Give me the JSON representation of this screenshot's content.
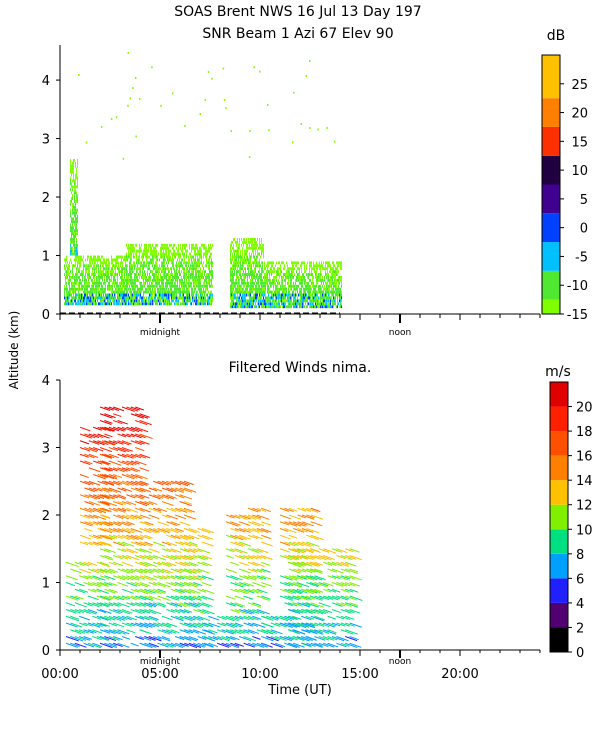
{
  "header": {
    "title_line1": "SOAS Brent NWS  16 Jul 13 Day 197",
    "title_line2": "SNR Beam 1 Azi  67 Elev 90"
  },
  "y_axis_label": "Altitude (km)",
  "chart_data": [
    {
      "type": "heatmap",
      "panel": "snr",
      "title": "",
      "ylim": [
        0,
        4.6
      ],
      "xlim_hours": [
        0,
        24
      ],
      "y_ticks": [
        "0",
        "1",
        "2",
        "3",
        "4"
      ],
      "x_markers": [
        {
          "label": "midnight",
          "hour": 5
        },
        {
          "label": "noon",
          "hour": 17
        }
      ],
      "colorbar": {
        "unit": "dB",
        "ticks": [
          "25",
          "20",
          "15",
          "10",
          "5",
          "0",
          "-5",
          "-10",
          "-15"
        ],
        "bands": [
          {
            "from": -15,
            "to": -12.5,
            "color": "#80ff00"
          },
          {
            "from": -12.5,
            "to": -7.5,
            "color": "#50e830"
          },
          {
            "from": -7.5,
            "to": -2.5,
            "color": "#00c0ff"
          },
          {
            "from": -2.5,
            "to": 2.5,
            "color": "#0040ff"
          },
          {
            "from": 2.5,
            "to": 7.5,
            "color": "#400090"
          },
          {
            "from": 7.5,
            "to": 12.5,
            "color": "#200040"
          },
          {
            "from": 12.5,
            "to": 17.5,
            "color": "#ff3000"
          },
          {
            "from": 17.5,
            "to": 22.5,
            "color": "#ff8000"
          },
          {
            "from": 22.5,
            "to": 30,
            "color": "#ffc000"
          }
        ]
      },
      "segments": [
        {
          "t0": 0.2,
          "t1": 3.3,
          "hmin": 0.15,
          "hmax": 1.0
        },
        {
          "t0": 0.5,
          "t1": 0.9,
          "hmin": 1.0,
          "hmax": 2.6
        },
        {
          "t0": 3.3,
          "t1": 7.6,
          "hmin": 0.15,
          "hmax": 1.2
        },
        {
          "t0": 8.5,
          "t1": 10.2,
          "hmin": 0.1,
          "hmax": 1.3
        },
        {
          "t0": 10.2,
          "t1": 11.8,
          "hmin": 0.1,
          "hmax": 0.9
        },
        {
          "t0": 11.8,
          "t1": 14.1,
          "hmin": 0.1,
          "hmax": 0.9
        }
      ]
    },
    {
      "type": "scatter",
      "panel": "winds",
      "title": "Filtered Winds nima.",
      "xlabel": "Time (UT)",
      "ylim": [
        0,
        4
      ],
      "xlim_hours": [
        0,
        24
      ],
      "x_ticks": [
        "00:00",
        "05:00",
        "10:00",
        "15:00",
        "20:00"
      ],
      "y_ticks": [
        "0",
        "1",
        "2",
        "3",
        "4"
      ],
      "x_markers": [
        {
          "label": "midnight",
          "hour": 5
        },
        {
          "label": "noon",
          "hour": 17
        }
      ],
      "colorbar": {
        "unit": "m/s",
        "ticks": [
          "20",
          "18",
          "16",
          "14",
          "12",
          "10",
          "8",
          "6",
          "4",
          "2",
          "0"
        ],
        "bands": [
          {
            "from": 0,
            "to": 2,
            "color": "#000000"
          },
          {
            "from": 2,
            "to": 4,
            "color": "#500070"
          },
          {
            "from": 4,
            "to": 6,
            "color": "#2020ff"
          },
          {
            "from": 6,
            "to": 8,
            "color": "#00a0ff"
          },
          {
            "from": 8,
            "to": 10,
            "color": "#00e080"
          },
          {
            "from": 10,
            "to": 12,
            "color": "#80f000"
          },
          {
            "from": 12,
            "to": 14,
            "color": "#ffc000"
          },
          {
            "from": 14,
            "to": 16,
            "color": "#ff8000"
          },
          {
            "from": 16,
            "to": 18,
            "color": "#ff5000"
          },
          {
            "from": 18,
            "to": 20,
            "color": "#ff2000"
          },
          {
            "from": 20,
            "to": 22,
            "color": "#e00000"
          }
        ]
      },
      "profiles": [
        {
          "t0": 0.3,
          "t1": 1.9,
          "hmin": 0.1,
          "hmax": 1.4
        },
        {
          "t0": 1.0,
          "t1": 2.2,
          "hmin": 1.6,
          "hmax": 3.4
        },
        {
          "t0": 2.0,
          "t1": 4.2,
          "hmin": 0.1,
          "hmax": 3.7
        },
        {
          "t0": 4.0,
          "t1": 6.2,
          "hmin": 0.1,
          "hmax": 2.6
        },
        {
          "t0": 6.0,
          "t1": 7.2,
          "hmin": 0.1,
          "hmax": 1.9
        },
        {
          "t0": 7.2,
          "t1": 8.5,
          "hmin": 0.1,
          "hmax": 0.6
        },
        {
          "t0": 8.3,
          "t1": 10.1,
          "hmin": 0.1,
          "hmax": 2.2
        },
        {
          "t0": 10.1,
          "t1": 11.2,
          "hmin": 0.1,
          "hmax": 0.6
        },
        {
          "t0": 11.0,
          "t1": 12.7,
          "hmin": 0.1,
          "hmax": 2.2
        },
        {
          "t0": 11.4,
          "t1": 14.5,
          "hmin": 0.1,
          "hmax": 1.6
        }
      ]
    }
  ]
}
